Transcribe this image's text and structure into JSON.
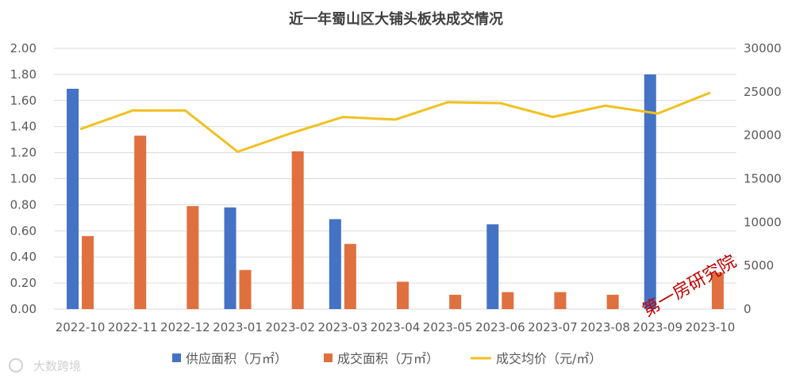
{
  "chart_data": {
    "type": "bar",
    "title": "近一年蜀山区大铺头板块成交情况",
    "categories": [
      "2022-10",
      "2022-11",
      "2022-12",
      "2023-01",
      "2023-02",
      "2023-03",
      "2023-04",
      "2023-05",
      "2023-06",
      "2023-07",
      "2023-08",
      "2023-09",
      "2023-10"
    ],
    "y_left": {
      "ticks": [
        "0.00",
        "0.20",
        "0.40",
        "0.60",
        "0.80",
        "1.00",
        "1.20",
        "1.40",
        "1.60",
        "1.80",
        "2.00"
      ],
      "ylim": [
        0,
        2.0
      ]
    },
    "y_right": {
      "ticks": [
        "0",
        "5000",
        "10000",
        "15000",
        "20000",
        "25000",
        "30000"
      ],
      "ylim": [
        0,
        30000
      ]
    },
    "series": [
      {
        "name": "供应面积（万㎡）",
        "type": "bar",
        "axis": "left",
        "color": "#4472c4",
        "values": [
          1.69,
          null,
          null,
          0.78,
          null,
          0.69,
          null,
          null,
          0.65,
          null,
          null,
          1.8,
          null
        ]
      },
      {
        "name": "成交面积（万㎡）",
        "type": "bar",
        "axis": "left",
        "color": "#e07040",
        "values": [
          0.56,
          1.33,
          0.79,
          0.3,
          1.21,
          0.5,
          0.21,
          0.11,
          0.13,
          0.13,
          0.11,
          0.0,
          0.28
        ]
      },
      {
        "name": "成交均价（元/㎡）",
        "type": "line",
        "axis": "right",
        "color": "#f0c020",
        "values": [
          20700,
          22850,
          22850,
          18100,
          20200,
          22100,
          21800,
          23800,
          23700,
          22100,
          23400,
          22500,
          24900
        ]
      }
    ],
    "grid": true,
    "legend": "bottom"
  },
  "watermarks": {
    "main": "第一房研究院",
    "corner": "大数跨境"
  }
}
